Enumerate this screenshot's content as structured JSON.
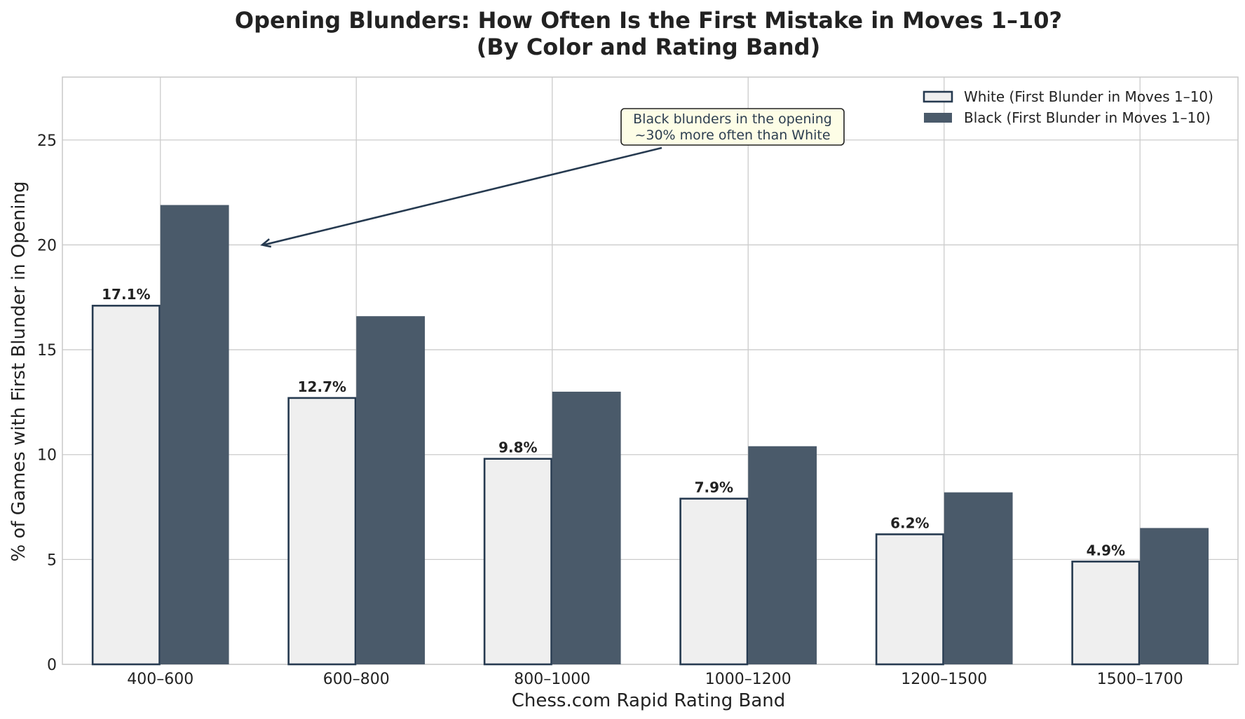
{
  "chart_data": {
    "type": "bar",
    "title": "Opening Blunders: How Often Is the First Mistake in Moves 1–10?",
    "subtitle": "(By Color and Rating Band)",
    "xlabel": "Chess.com Rapid Rating Band",
    "ylabel": "% of Games with First Blunder in Opening",
    "categories": [
      "400–600",
      "600–800",
      "800–1000",
      "1000–1200",
      "1200–1500",
      "1500–1700"
    ],
    "series": [
      {
        "name": "White (First Blunder in Moves 1–10)",
        "values": [
          17.1,
          12.7,
          9.8,
          7.9,
          6.2,
          4.9
        ],
        "data_labels": [
          "17.1%",
          "12.7%",
          "9.8%",
          "7.9%",
          "6.2%",
          "4.9%"
        ],
        "fill": "#efefef",
        "stroke": "#263a50"
      },
      {
        "name": "Black (First Blunder in Moves 1–10)",
        "values": [
          21.9,
          16.6,
          13.0,
          10.4,
          8.2,
          6.5
        ],
        "fill": "#4a5a6a"
      }
    ],
    "ylim": [
      0,
      28
    ],
    "yticks": [
      0,
      5,
      10,
      15,
      20,
      25
    ],
    "grid": true,
    "legend_position": "top-right",
    "annotation": {
      "lines": [
        "Black blunders in the opening",
        "~30% more often than White"
      ],
      "arrow_to": {
        "x_category_offset": 0.52,
        "y": 20.0
      },
      "background": "#fdfde6",
      "border": "#222222"
    }
  }
}
